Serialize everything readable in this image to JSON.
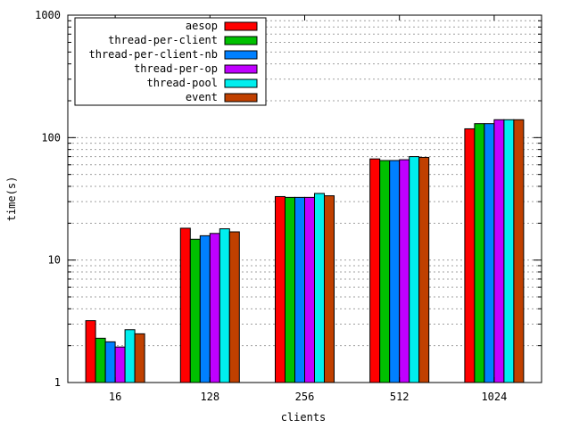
{
  "chart_data": {
    "type": "bar",
    "title": "",
    "xlabel": "clients",
    "ylabel": "time(s)",
    "yscale": "log",
    "ylim": [
      1,
      1000
    ],
    "yticks": [
      1,
      10,
      100,
      1000
    ],
    "ytick_labels": [
      "1",
      "10",
      "100",
      "1000"
    ],
    "grid": "horizontal-dotted",
    "legend_position": "top-left",
    "categories": [
      "16",
      "128",
      "256",
      "512",
      "1024"
    ],
    "series": [
      {
        "name": "aesop",
        "color": "#ff0000",
        "values": [
          3.2,
          18.2,
          33,
          67,
          118
        ]
      },
      {
        "name": "thread-per-client",
        "color": "#00c000",
        "values": [
          2.3,
          14.8,
          32.5,
          65,
          130
        ]
      },
      {
        "name": "thread-per-client-nb",
        "color": "#0080ff",
        "values": [
          2.15,
          15.8,
          32.5,
          65,
          130
        ]
      },
      {
        "name": "thread-per-op",
        "color": "#c000ff",
        "values": [
          1.95,
          16.5,
          32.5,
          66,
          140
        ]
      },
      {
        "name": "thread-pool",
        "color": "#00eeee",
        "values": [
          2.7,
          18.0,
          35,
          70,
          140
        ]
      },
      {
        "name": "event",
        "color": "#c04000",
        "values": [
          2.5,
          17.0,
          33.5,
          69,
          140
        ]
      }
    ]
  }
}
